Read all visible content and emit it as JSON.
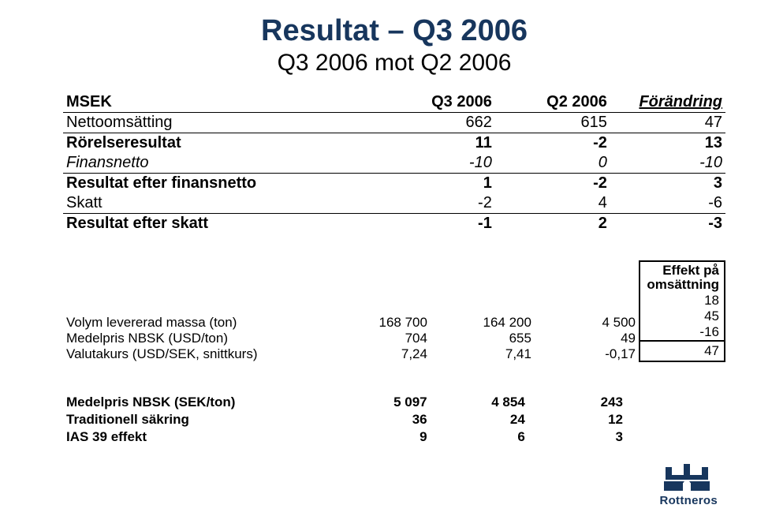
{
  "colors": {
    "title": "#17365d",
    "text": "#000000",
    "border": "#000000",
    "logo": "#17365d",
    "background": "#ffffff"
  },
  "fonts": {
    "title_size": 38,
    "subtitle_size": 30,
    "table1_size": 20,
    "table2_size": 17,
    "table3_size": 17,
    "logo_name_size": 15
  },
  "title": "Resultat – Q3 2006",
  "subtitle": "Q3 2006 mot Q2 2006",
  "table1": {
    "columns": [
      "MSEK",
      "Q3 2006",
      "Q2 2006",
      "Förändring"
    ],
    "col_widths_pct": [
      44,
      16,
      16,
      16
    ],
    "rows": [
      {
        "label": "Nettoomsätting",
        "v": [
          "662",
          "615",
          "47"
        ],
        "style": "plain",
        "underlined": true
      },
      {
        "label": "Rörelseresultat",
        "v": [
          "11",
          "-2",
          "13"
        ],
        "style": "bold"
      },
      {
        "label": "Finansnetto",
        "v": [
          "-10",
          "0",
          "-10"
        ],
        "style": "italic",
        "underlined": true
      },
      {
        "label": "Resultat efter finansnetto",
        "v": [
          "1",
          "-2",
          "3"
        ],
        "style": "bold"
      },
      {
        "label": "Skatt",
        "v": [
          "-2",
          "4",
          "-6"
        ],
        "style": "plain",
        "underlined": true
      },
      {
        "label": "Resultat efter skatt",
        "v": [
          "-1",
          "2",
          "-3"
        ],
        "style": "bold"
      }
    ]
  },
  "table2": {
    "rows": [
      {
        "label": "Volym levererad massa (ton)",
        "v": [
          "168 700",
          "164 200",
          "4 500"
        ]
      },
      {
        "label": "Medelpris NBSK (USD/ton)",
        "v": [
          "704",
          "655",
          "49"
        ]
      },
      {
        "label": "Valutakurs (USD/SEK, snittkurs)",
        "v": [
          "7,24",
          "7,41",
          "-0,17"
        ]
      }
    ]
  },
  "effect_box": {
    "header1": "Effekt på",
    "header2": "omsättning",
    "values": [
      "18",
      "45",
      "-16"
    ],
    "total": "47"
  },
  "table3": {
    "rows": [
      {
        "label": "Medelpris NBSK (SEK/ton)",
        "v": [
          "5 097",
          "4 854",
          "243"
        ],
        "bold": true
      },
      {
        "label": "Traditionell säkring",
        "v": [
          "36",
          "24",
          "12"
        ],
        "bold": true
      },
      {
        "label": "IAS 39 effekt",
        "v": [
          "9",
          "6",
          "3"
        ],
        "bold": true
      }
    ]
  },
  "logo": {
    "name": "Rottneros"
  }
}
